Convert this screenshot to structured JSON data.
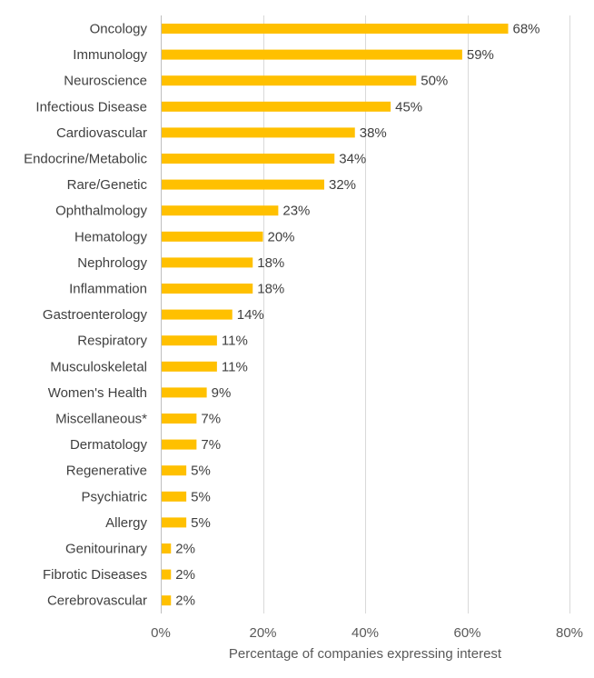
{
  "chart_data": {
    "type": "bar",
    "orientation": "horizontal",
    "categories": [
      "Oncology",
      "Immunology",
      "Neuroscience",
      "Infectious Disease",
      "Cardiovascular",
      "Endocrine/Metabolic",
      "Rare/Genetic",
      "Ophthalmology",
      "Hematology",
      "Nephrology",
      "Inflammation",
      "Gastroenterology",
      "Respiratory",
      "Musculoskeletal",
      "Women's Health",
      "Miscellaneous*",
      "Dermatology",
      "Regenerative",
      "Psychiatric",
      "Allergy",
      "Genitourinary",
      "Fibrotic Diseases",
      "Cerebrovascular"
    ],
    "values": [
      68,
      59,
      50,
      45,
      38,
      34,
      32,
      23,
      20,
      18,
      18,
      14,
      11,
      11,
      9,
      7,
      7,
      5,
      5,
      5,
      2,
      2,
      2
    ],
    "value_labels": [
      "68%",
      "59%",
      "50%",
      "45%",
      "38%",
      "34%",
      "32%",
      "23%",
      "20%",
      "18%",
      "18%",
      "14%",
      "11%",
      "11%",
      "9%",
      "7%",
      "7%",
      "5%",
      "5%",
      "5%",
      "2%",
      "2%",
      "2%"
    ],
    "xlabel": "Percentage of companies expressing interest",
    "ylabel": "",
    "xlim": [
      0,
      80
    ],
    "x_ticks": [
      0,
      20,
      40,
      60,
      80
    ],
    "x_tick_labels": [
      "0%",
      "20%",
      "40%",
      "60%",
      "80%"
    ],
    "grid": "vertical",
    "legend": "none",
    "bar_color": "#ffc000"
  }
}
